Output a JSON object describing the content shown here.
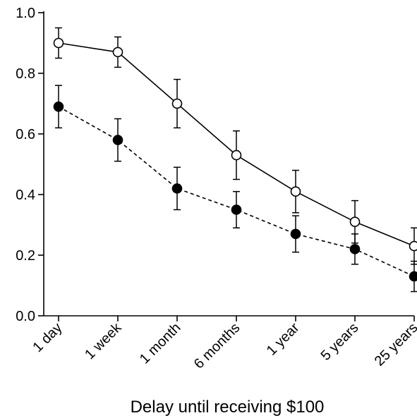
{
  "chart_data": {
    "type": "line",
    "title": "",
    "xlabel": "Delay until receiving $100",
    "ylabel": "",
    "categories": [
      "1 day",
      "1 week",
      "1 month",
      "6 months",
      "1 year",
      "5 years",
      "25 years"
    ],
    "ylim": [
      0.0,
      1.0
    ],
    "yticks": [
      0.0,
      0.2,
      0.4,
      0.6,
      0.8,
      1.0
    ],
    "ytick_labels": [
      "0.0",
      "0.2",
      "0.4",
      "0.6",
      "0.8",
      "1.0"
    ],
    "grid": false,
    "legend": "none",
    "series": [
      {
        "marker": "open-circle",
        "line_style": "solid",
        "color": "#000000",
        "values": [
          0.9,
          0.87,
          0.7,
          0.53,
          0.41,
          0.31,
          0.23
        ],
        "error": [
          0.05,
          0.05,
          0.08,
          0.08,
          0.07,
          0.07,
          0.06
        ]
      },
      {
        "marker": "filled-circle",
        "line_style": "dashed",
        "color": "#000000",
        "values": [
          0.69,
          0.58,
          0.42,
          0.35,
          0.27,
          0.22,
          0.13
        ],
        "error": [
          0.07,
          0.07,
          0.07,
          0.06,
          0.06,
          0.05,
          0.05
        ]
      }
    ]
  }
}
